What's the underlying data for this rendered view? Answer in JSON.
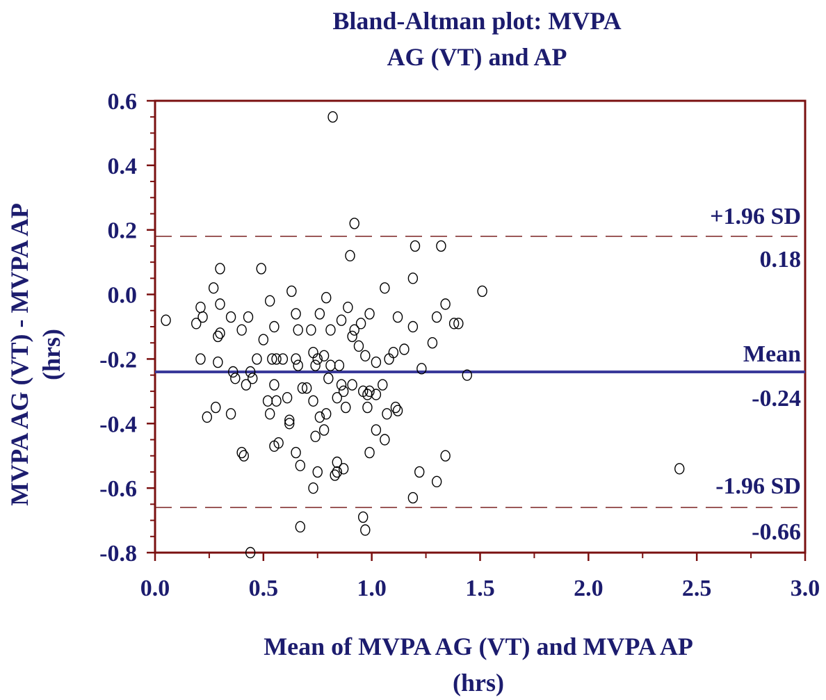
{
  "chart_data": {
    "type": "scatter",
    "title_lines": [
      "Bland-Altman plot: MVPA",
      "AG (VT) and AP"
    ],
    "xlabel_lines": [
      "Mean of MVPA AG (VT) and MVPA AP",
      "(hrs)"
    ],
    "ylabel_lines": [
      "MVPA AG (VT) - MVPA AP",
      "(hrs)"
    ],
    "xlim": [
      0.0,
      3.0
    ],
    "ylim": [
      -0.8,
      0.6
    ],
    "x_ticks": [
      "0.0",
      "0.5",
      "1.0",
      "1.5",
      "2.0",
      "2.5",
      "3.0"
    ],
    "y_ticks": [
      "0.6",
      "0.4",
      "0.2",
      "0.0",
      "-0.2",
      "-0.4",
      "-0.6",
      "-0.8"
    ],
    "grid": false,
    "reference_lines": {
      "upper": {
        "label": "+1.96 SD",
        "value_label": "0.18",
        "value": 0.18,
        "style": "dashed",
        "color": "#7a2020"
      },
      "mean": {
        "label": "Mean",
        "value_label": "-0.24",
        "value": -0.24,
        "style": "solid",
        "color": "#3a3a9a"
      },
      "lower": {
        "label": "-1.96 SD",
        "value_label": "-0.66",
        "value": -0.66,
        "style": "dashed",
        "color": "#7a2020"
      }
    },
    "colors": {
      "text": "#1c1c6e",
      "frame": "#7a1010",
      "points": "#000000"
    },
    "points": [
      [
        0.05,
        -0.08
      ],
      [
        0.19,
        -0.09
      ],
      [
        0.21,
        -0.04
      ],
      [
        0.22,
        -0.07
      ],
      [
        0.21,
        -0.2
      ],
      [
        0.24,
        -0.38
      ],
      [
        0.27,
        0.02
      ],
      [
        0.28,
        -0.35
      ],
      [
        0.29,
        -0.13
      ],
      [
        0.29,
        -0.21
      ],
      [
        0.3,
        -0.12
      ],
      [
        0.3,
        -0.03
      ],
      [
        0.3,
        0.08
      ],
      [
        0.35,
        -0.07
      ],
      [
        0.35,
        -0.37
      ],
      [
        0.36,
        -0.24
      ],
      [
        0.37,
        -0.26
      ],
      [
        0.4,
        -0.11
      ],
      [
        0.4,
        -0.49
      ],
      [
        0.41,
        -0.5
      ],
      [
        0.42,
        -0.28
      ],
      [
        0.43,
        -0.07
      ],
      [
        0.44,
        -0.24
      ],
      [
        0.45,
        -0.26
      ],
      [
        0.44,
        -0.8
      ],
      [
        0.47,
        -0.2
      ],
      [
        0.49,
        0.08
      ],
      [
        0.5,
        -0.14
      ],
      [
        0.52,
        -0.33
      ],
      [
        0.53,
        -0.02
      ],
      [
        0.53,
        -0.37
      ],
      [
        0.54,
        -0.2
      ],
      [
        0.55,
        -0.1
      ],
      [
        0.55,
        -0.28
      ],
      [
        0.55,
        -0.47
      ],
      [
        0.56,
        -0.2
      ],
      [
        0.56,
        -0.33
      ],
      [
        0.57,
        -0.46
      ],
      [
        0.59,
        -0.2
      ],
      [
        0.61,
        -0.32
      ],
      [
        0.62,
        -0.39
      ],
      [
        0.62,
        -0.4
      ],
      [
        0.63,
        0.01
      ],
      [
        0.65,
        -0.49
      ],
      [
        0.65,
        -0.06
      ],
      [
        0.65,
        -0.2
      ],
      [
        0.66,
        -0.11
      ],
      [
        0.66,
        -0.22
      ],
      [
        0.67,
        -0.53
      ],
      [
        0.67,
        -0.72
      ],
      [
        0.68,
        -0.29
      ],
      [
        0.7,
        -0.29
      ],
      [
        0.72,
        -0.11
      ],
      [
        0.73,
        -0.6
      ],
      [
        0.73,
        -0.33
      ],
      [
        0.73,
        -0.18
      ],
      [
        0.74,
        -0.44
      ],
      [
        0.74,
        -0.22
      ],
      [
        0.75,
        -0.2
      ],
      [
        0.75,
        -0.55
      ],
      [
        0.76,
        -0.06
      ],
      [
        0.76,
        -0.38
      ],
      [
        0.78,
        -0.42
      ],
      [
        0.78,
        -0.19
      ],
      [
        0.79,
        -0.01
      ],
      [
        0.79,
        -0.37
      ],
      [
        0.8,
        -0.26
      ],
      [
        0.81,
        -0.11
      ],
      [
        0.81,
        -0.22
      ],
      [
        0.82,
        0.55
      ],
      [
        0.83,
        -0.56
      ],
      [
        0.84,
        -0.55
      ],
      [
        0.84,
        -0.52
      ],
      [
        0.84,
        -0.32
      ],
      [
        0.85,
        -0.22
      ],
      [
        0.86,
        -0.08
      ],
      [
        0.86,
        -0.28
      ],
      [
        0.87,
        -0.54
      ],
      [
        0.87,
        -0.3
      ],
      [
        0.88,
        -0.35
      ],
      [
        0.89,
        -0.04
      ],
      [
        0.9,
        0.12
      ],
      [
        0.91,
        -0.13
      ],
      [
        0.91,
        -0.28
      ],
      [
        0.92,
        -0.11
      ],
      [
        0.92,
        0.22
      ],
      [
        0.94,
        -0.16
      ],
      [
        0.95,
        -0.09
      ],
      [
        0.96,
        -0.69
      ],
      [
        0.96,
        -0.3
      ],
      [
        0.97,
        -0.73
      ],
      [
        0.97,
        -0.19
      ],
      [
        0.98,
        -0.31
      ],
      [
        0.98,
        -0.35
      ],
      [
        0.99,
        -0.06
      ],
      [
        0.99,
        -0.49
      ],
      [
        0.99,
        -0.3
      ],
      [
        1.02,
        -0.31
      ],
      [
        1.02,
        -0.21
      ],
      [
        1.02,
        -0.42
      ],
      [
        1.05,
        -0.28
      ],
      [
        1.06,
        -0.45
      ],
      [
        1.06,
        0.02
      ],
      [
        1.07,
        -0.37
      ],
      [
        1.08,
        -0.2
      ],
      [
        1.1,
        -0.18
      ],
      [
        1.11,
        -0.35
      ],
      [
        1.12,
        -0.07
      ],
      [
        1.12,
        -0.36
      ],
      [
        1.15,
        -0.17
      ],
      [
        1.19,
        -0.1
      ],
      [
        1.19,
        0.05
      ],
      [
        1.19,
        -0.63
      ],
      [
        1.2,
        0.15
      ],
      [
        1.22,
        -0.55
      ],
      [
        1.23,
        -0.23
      ],
      [
        1.28,
        -0.15
      ],
      [
        1.3,
        -0.07
      ],
      [
        1.3,
        -0.58
      ],
      [
        1.32,
        0.15
      ],
      [
        1.34,
        -0.03
      ],
      [
        1.34,
        -0.5
      ],
      [
        1.38,
        -0.09
      ],
      [
        1.4,
        -0.09
      ],
      [
        1.44,
        -0.25
      ],
      [
        1.51,
        0.01
      ],
      [
        2.42,
        -0.54
      ]
    ]
  }
}
